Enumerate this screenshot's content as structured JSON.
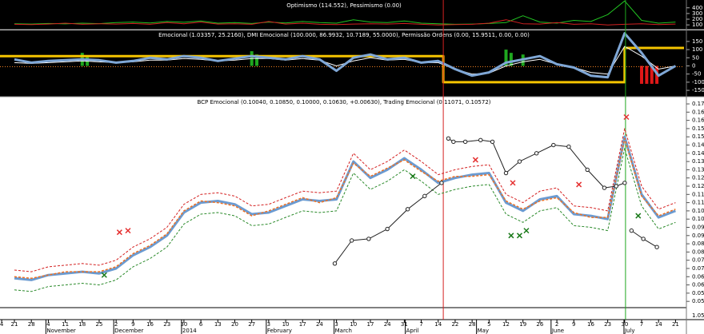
{
  "chart_data": [
    {
      "type": "line",
      "title": "Optimismo (114.552), Pessimismo (0.00)",
      "xlim": [
        -0.85,
        39.5
      ],
      "ylim": [
        32,
        523
      ],
      "yticks": [
        400,
        300,
        200,
        100
      ],
      "series": [
        {
          "color": "#22c322",
          "values": [
            120,
            115,
            125,
            118,
            130,
            122,
            140,
            150,
            135,
            160,
            145,
            170,
            130,
            140,
            125,
            150,
            135,
            160,
            140,
            130,
            190,
            150,
            140,
            170,
            130,
            120,
            110,
            115,
            125,
            140,
            260,
            150,
            130,
            180,
            160,
            280,
            520,
            180,
            130,
            150
          ]
        },
        {
          "color": "#d42020",
          "values": [
            110,
            105,
            115,
            130,
            110,
            120,
            115,
            125,
            110,
            140,
            120,
            150,
            115,
            120,
            110,
            160,
            115,
            130,
            110,
            105,
            115,
            120,
            115,
            125,
            110,
            100,
            105,
            110,
            130,
            190,
            120,
            115,
            140,
            110,
            120,
            100,
            110,
            120,
            105,
            115
          ]
        }
      ]
    },
    {
      "type": "line",
      "title": "Emocional (1.03357, 25.2160), DMI Emocional (100.000, 86.9932, 10.7189, 55.0000), Permissão Ordens (0.00, 15.9511, 0.00, 0.00)",
      "xlim": [
        -0.85,
        39.5
      ],
      "ylim": [
        -184,
        218
      ],
      "yticks": [
        150,
        100,
        50,
        0,
        -50,
        -100,
        -150
      ],
      "bars": {
        "up_color": "#1fa81f",
        "down_color": "#e01818",
        "x": [
          4,
          4.3,
          14,
          14.3,
          29,
          29.3,
          30,
          37,
          37.3,
          37.6,
          37.9
        ],
        "values": [
          80,
          60,
          90,
          70,
          100,
          80,
          70,
          -110,
          -110,
          -110,
          -110
        ]
      },
      "series": [
        {
          "color": "#f08020",
          "style": "dotted",
          "x": [
            -0.85,
            39.5
          ],
          "values": [
            -5,
            -5
          ]
        },
        {
          "color": "#f5c400",
          "width": 3,
          "x": [
            -0.85,
            25.3,
            25.3,
            36,
            36,
            39.5
          ],
          "values": [
            60,
            60,
            -100,
            -100,
            110,
            110
          ]
        },
        {
          "color": "#ffffff",
          "values": [
            20,
            15,
            20,
            25,
            30,
            25,
            20,
            25,
            35,
            35,
            45,
            40,
            30,
            35,
            45,
            45,
            35,
            45,
            35,
            0,
            30,
            50,
            35,
            40,
            20,
            20,
            -20,
            -50,
            -45,
            0,
            25,
            40,
            10,
            -10,
            -40,
            -50,
            120,
            60,
            -20,
            0
          ]
        },
        {
          "color": "#7fa7d6",
          "width": 3,
          "values": [
            40,
            20,
            30,
            35,
            40,
            35,
            20,
            30,
            50,
            40,
            60,
            50,
            30,
            45,
            60,
            50,
            40,
            60,
            40,
            -30,
            50,
            70,
            40,
            50,
            20,
            30,
            -20,
            -60,
            -40,
            20,
            40,
            60,
            10,
            -10,
            -60,
            -70,
            200,
            80,
            -60,
            0
          ]
        }
      ]
    },
    {
      "type": "line",
      "title": "BCP Emocional (0.10040, 0.10850, 0.10000, 0.10630, +0.00630), Trading Emocional (0.11071, 0.10572)",
      "xlim": [
        -0.85,
        39.5
      ],
      "ylim": [
        0.0462,
        0.1739
      ],
      "yticks": [
        {
          "value": 0.17,
          "label": "0.170"
        },
        0.165,
        {
          "value": 0.16,
          "label": "0.160"
        },
        0.155,
        {
          "value": 0.15,
          "label": "0.150"
        },
        0.145,
        {
          "value": 0.14,
          "label": "0.140"
        },
        0.135,
        {
          "value": 0.13,
          "label": "0.130"
        },
        0.125,
        {
          "value": 0.12,
          "label": "0.120"
        },
        0.115,
        {
          "value": 0.11,
          "label": "0.110"
        },
        0.105,
        {
          "value": 0.1,
          "label": "0.100"
        },
        0.095,
        {
          "value": 0.09,
          "label": "0.090"
        },
        0.085,
        {
          "value": 0.08,
          "label": "0.080"
        },
        0.075,
        {
          "value": 0.07,
          "label": "0.070"
        },
        0.065,
        {
          "value": 0.06,
          "label": "0.060"
        },
        0.055,
        {
          "value": 0.05,
          "label": "0.050"
        }
      ],
      "subpanel_label": "1.05",
      "xticks": [
        {
          "value": -0.75,
          "label": "4"
        },
        {
          "value": 0,
          "label": "21"
        },
        {
          "value": 1,
          "label": "28"
        },
        {
          "value": 2,
          "label": "4"
        },
        {
          "value": 3,
          "label": "11"
        },
        {
          "value": 4,
          "label": "18"
        },
        {
          "value": 5,
          "label": "25"
        },
        {
          "value": 6,
          "label": "2"
        },
        {
          "value": 7,
          "label": "9"
        },
        {
          "value": 8,
          "label": "16"
        },
        {
          "value": 9,
          "label": "23"
        },
        {
          "value": 10,
          "label": "30"
        },
        {
          "value": 11,
          "label": "6"
        },
        {
          "value": 12,
          "label": "13"
        },
        {
          "value": 13,
          "label": "20"
        },
        {
          "value": 14,
          "label": "27"
        },
        {
          "value": 15,
          "label": "3"
        },
        {
          "value": 16,
          "label": "10"
        },
        {
          "value": 17,
          "label": "17"
        },
        {
          "value": 18,
          "label": "24"
        },
        {
          "value": 19,
          "label": "3"
        },
        {
          "value": 20,
          "label": "10"
        },
        {
          "value": 21,
          "label": "17"
        },
        {
          "value": 22,
          "label": "24"
        },
        {
          "value": 23,
          "label": "31"
        },
        {
          "value": 24,
          "label": "7"
        },
        {
          "value": 25,
          "label": "14"
        },
        {
          "value": 26,
          "label": "22"
        },
        {
          "value": 27,
          "label": "28"
        },
        {
          "value": 28,
          "label": "5"
        },
        {
          "value": 29,
          "label": "12"
        },
        {
          "value": 30,
          "label": "19"
        },
        {
          "value": 31,
          "label": "26"
        },
        {
          "value": 32,
          "label": "2"
        },
        {
          "value": 33,
          "label": "9"
        },
        {
          "value": 34,
          "label": "16"
        },
        {
          "value": 35,
          "label": "23"
        },
        {
          "value": 36,
          "label": "30"
        },
        {
          "value": 37,
          "label": "7"
        },
        {
          "value": 38,
          "label": "14"
        },
        {
          "value": 39,
          "label": "21"
        }
      ],
      "months": [
        {
          "value": 2,
          "label": "November"
        },
        {
          "value": 6,
          "label": "December"
        },
        {
          "value": 10,
          "label": "2014"
        },
        {
          "value": 15,
          "label": "February"
        },
        {
          "value": 19,
          "label": "March"
        },
        {
          "value": 23.2,
          "label": "April"
        },
        {
          "value": 27.4,
          "label": "May"
        },
        {
          "value": 31.8,
          "label": "June"
        },
        {
          "value": 36.1,
          "label": "July"
        }
      ],
      "vlines": [
        {
          "value": 25.3,
          "color": "#d42020"
        },
        {
          "value": 36.05,
          "color": "#1fa81f"
        }
      ],
      "series": [
        {
          "color": "#d42020",
          "style": "dashed",
          "values": [
            0.069,
            0.068,
            0.071,
            0.072,
            0.073,
            0.072,
            0.075,
            0.083,
            0.088,
            0.095,
            0.109,
            0.115,
            0.116,
            0.114,
            0.108,
            0.109,
            0.113,
            0.117,
            0.116,
            0.117,
            0.14,
            0.13,
            0.135,
            0.142,
            0.135,
            0.127,
            0.13,
            0.132,
            0.133,
            0.115,
            0.11,
            0.117,
            0.119,
            0.108,
            0.107,
            0.105,
            0.155,
            0.12,
            0.106,
            0.11
          ]
        },
        {
          "color": "#2a8a2a",
          "style": "dashed",
          "values": [
            0.057,
            0.056,
            0.059,
            0.06,
            0.061,
            0.06,
            0.063,
            0.071,
            0.076,
            0.083,
            0.097,
            0.103,
            0.104,
            0.102,
            0.096,
            0.097,
            0.101,
            0.105,
            0.104,
            0.105,
            0.128,
            0.118,
            0.123,
            0.13,
            0.123,
            0.115,
            0.118,
            0.12,
            0.121,
            0.103,
            0.098,
            0.105,
            0.107,
            0.096,
            0.095,
            0.093,
            0.143,
            0.108,
            0.094,
            0.098
          ]
        },
        {
          "color": "#6b9bd1",
          "width": 3,
          "values": [
            0.064,
            0.063,
            0.066,
            0.067,
            0.068,
            0.067,
            0.07,
            0.078,
            0.083,
            0.09,
            0.104,
            0.11,
            0.111,
            0.109,
            0.103,
            0.104,
            0.108,
            0.112,
            0.111,
            0.112,
            0.135,
            0.125,
            0.13,
            0.137,
            0.13,
            0.122,
            0.125,
            0.127,
            0.128,
            0.11,
            0.105,
            0.112,
            0.114,
            0.103,
            0.102,
            0.1,
            0.15,
            0.115,
            0.101,
            0.105
          ]
        },
        {
          "color": "#f07020",
          "width": 1.5,
          "style": "dashed",
          "values": [
            0.065,
            0.064,
            0.066,
            0.068,
            0.068,
            0.068,
            0.071,
            0.079,
            0.084,
            0.091,
            0.105,
            0.111,
            0.11,
            0.108,
            0.102,
            0.105,
            0.109,
            0.113,
            0.11,
            0.113,
            0.134,
            0.126,
            0.131,
            0.136,
            0.129,
            0.123,
            0.126,
            0.126,
            0.127,
            0.111,
            0.106,
            0.111,
            0.113,
            0.104,
            0.101,
            0.101,
            0.149,
            0.114,
            0.102,
            0.106
          ]
        },
        {
          "color": "#222222",
          "circles": true,
          "x": [
            18.9,
            19.9,
            20.9,
            22.0,
            23.2,
            24.2,
            25.2,
            25.4,
            25.6,
            25.9,
            26.6,
            27.5,
            28.2,
            29.0,
            29.8,
            30.8,
            31.8,
            32.7,
            33.8,
            34.8,
            35.5,
            36.0,
            36.2,
            36.4,
            37.1,
            37.9
          ],
          "values": [
            0.073,
            0.087,
            0.088,
            0.094,
            0.106,
            0.114,
            0.122,
            null,
            0.149,
            0.147,
            0.147,
            0.148,
            0.147,
            0.128,
            0.135,
            0.14,
            0.145,
            0.144,
            0.13,
            0.119,
            0.12,
            0.122,
            null,
            0.093,
            0.088,
            0.083
          ]
        }
      ],
      "markers": [
        {
          "color": "#e53030",
          "x": [
            6.2,
            6.7,
            27.2,
            29.4,
            33.3,
            36.1
          ],
          "values": [
            0.092,
            0.093,
            0.136,
            0.122,
            0.121,
            0.162
          ]
        },
        {
          "color": "#1a7a1a",
          "x": [
            5.3,
            23.5,
            29.3,
            29.8,
            30.2,
            36.8
          ],
          "values": [
            0.066,
            0.126,
            0.09,
            0.09,
            0.093,
            0.102
          ]
        }
      ]
    }
  ]
}
